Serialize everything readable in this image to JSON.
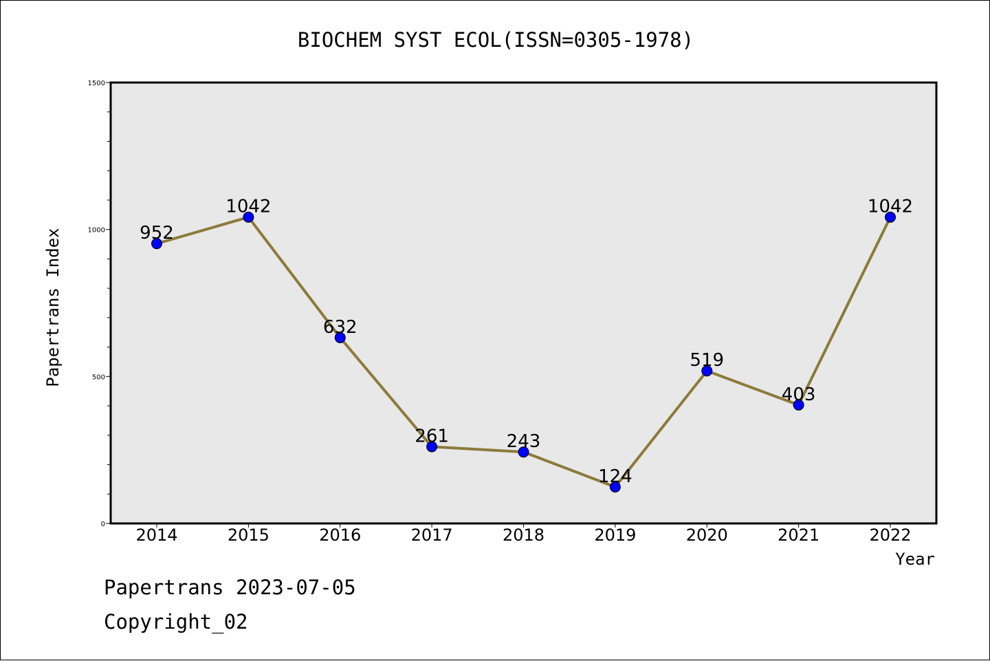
{
  "chart_data": {
    "type": "line",
    "title": "BIOCHEM SYST ECOL(ISSN=0305-1978)",
    "xlabel": "Year",
    "ylabel": "Papertrans Index",
    "x": [
      "2014",
      "2015",
      "2016",
      "2017",
      "2018",
      "2019",
      "2020",
      "2021",
      "2022"
    ],
    "series": [
      {
        "values": [
          952,
          1042,
          632,
          261,
          243,
          124,
          519,
          403,
          1042
        ]
      }
    ],
    "data_labels": [
      "952",
      "1042",
      "632",
      "261",
      "243",
      "124",
      "519",
      "403",
      "1042"
    ],
    "ylim": [
      0,
      1500
    ],
    "y_major_ticks": [
      0,
      500,
      1000,
      1500
    ],
    "y_minor_step": 100,
    "grid": false,
    "legend": "none",
    "colors": {
      "line": "#8c7a3a",
      "marker": "#0000ff",
      "plot_background": "#e8e8e8"
    }
  },
  "footer": {
    "line1": "Papertrans 2023-07-05",
    "line2": "Copyright_02"
  }
}
